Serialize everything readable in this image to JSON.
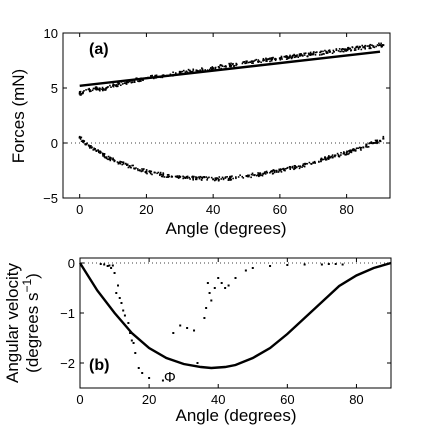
{
  "chart_data": [
    {
      "type": "scatter",
      "panel_label": "(a)",
      "xlabel": "Angle (degrees)",
      "ylabel": "Forces (mN)",
      "xlim": [
        -5,
        93
      ],
      "ylim": [
        -5,
        10
      ],
      "xticks": [
        0,
        20,
        40,
        60,
        80
      ],
      "yticks": [
        -5,
        0,
        5,
        10
      ],
      "grid": false,
      "zero_reference": {
        "y": 0,
        "style": "dotted"
      },
      "series": [
        {
          "style": "dense scatter",
          "x": [
            0,
            1,
            3,
            5,
            6,
            8,
            10,
            15,
            20,
            25,
            30,
            35,
            40,
            45,
            50,
            55,
            60,
            65,
            70,
            75,
            80,
            85,
            88,
            90,
            91
          ],
          "y": [
            4.5,
            4.6,
            4.8,
            5.0,
            4.9,
            5.0,
            5.2,
            5.6,
            5.9,
            6.1,
            6.4,
            6.6,
            6.8,
            7.1,
            7.3,
            7.5,
            7.7,
            7.9,
            8.1,
            8.3,
            8.5,
            8.7,
            8.8,
            8.9,
            8.9
          ]
        },
        {
          "style": "dense scatter",
          "x": [
            0,
            1,
            2,
            3,
            5,
            7,
            8,
            10,
            12,
            15,
            20,
            25,
            30,
            35,
            40,
            45,
            50,
            55,
            60,
            65,
            70,
            75,
            80,
            85,
            88,
            90,
            91
          ],
          "y": [
            0.5,
            0.2,
            -0.1,
            -0.3,
            -0.7,
            -1.0,
            -1.3,
            -1.5,
            -1.8,
            -2.1,
            -2.6,
            -2.9,
            -3.1,
            -3.2,
            -3.3,
            -3.2,
            -3.0,
            -2.8,
            -2.5,
            -2.2,
            -1.8,
            -1.3,
            -0.9,
            -0.4,
            0.0,
            0.2,
            0.4
          ]
        },
        {
          "style": "solid line",
          "x": [
            0,
            90
          ],
          "y": [
            5.2,
            8.3
          ]
        }
      ]
    },
    {
      "type": "scatter",
      "panel_label": "(b)",
      "xlabel": "Angle (degrees)",
      "ylabel": [
        "Angular velocity",
        "(degrees s"
      ],
      "ylabel_unit_superscript": "−1",
      "ylabel_unit_close": ")",
      "xlim": [
        0,
        90
      ],
      "ylim": [
        -2.5,
        0.1
      ],
      "xticks": [
        0,
        20,
        40,
        60,
        80
      ],
      "yticks": [
        -2,
        -1,
        0
      ],
      "grid": false,
      "zero_reference": {
        "y": 0,
        "style": "dotted"
      },
      "annotation": {
        "text": "Φ",
        "x": 26,
        "y": -2.28
      },
      "series": [
        {
          "style": "scatter",
          "x": [
            6,
            7,
            8,
            8.5,
            9,
            9.5,
            10,
            10.5,
            11,
            11.5,
            12,
            12.5,
            13,
            14,
            14.5,
            15,
            15.5,
            16,
            17,
            18,
            20,
            24,
            25,
            27,
            29,
            31,
            33,
            34,
            36,
            36.5,
            37,
            37.5,
            38,
            39,
            40,
            41,
            42,
            43,
            45,
            48,
            50,
            55,
            60,
            65,
            70,
            72,
            74,
            76
          ],
          "y": [
            -0.02,
            -0.03,
            -0.06,
            -0.05,
            -0.1,
            -0.05,
            -0.2,
            -0.6,
            -0.45,
            -0.7,
            -0.8,
            -0.95,
            -1.05,
            -1.2,
            -1.4,
            -1.55,
            -1.6,
            -1.8,
            -2.1,
            -2.2,
            -2.3,
            -2.35,
            -1.9,
            -1.4,
            -1.25,
            -1.3,
            -1.35,
            -2.0,
            -1.1,
            -0.9,
            -0.4,
            -0.6,
            -0.75,
            -0.5,
            -0.3,
            -0.4,
            -0.5,
            -0.45,
            -0.3,
            -0.15,
            -0.1,
            -0.06,
            -0.04,
            -0.03,
            -0.03,
            -0.02,
            -0.02,
            -0.03
          ]
        },
        {
          "style": "solid line",
          "x": [
            0,
            5,
            10,
            15,
            20,
            25,
            30,
            35,
            38,
            42,
            45,
            50,
            55,
            60,
            65,
            70,
            75,
            80,
            85,
            90
          ],
          "y": [
            0.0,
            -0.55,
            -1.0,
            -1.4,
            -1.7,
            -1.9,
            -2.02,
            -2.08,
            -2.1,
            -2.08,
            -2.04,
            -1.9,
            -1.7,
            -1.42,
            -1.1,
            -0.78,
            -0.46,
            -0.25,
            -0.1,
            0.0
          ]
        }
      ]
    }
  ]
}
